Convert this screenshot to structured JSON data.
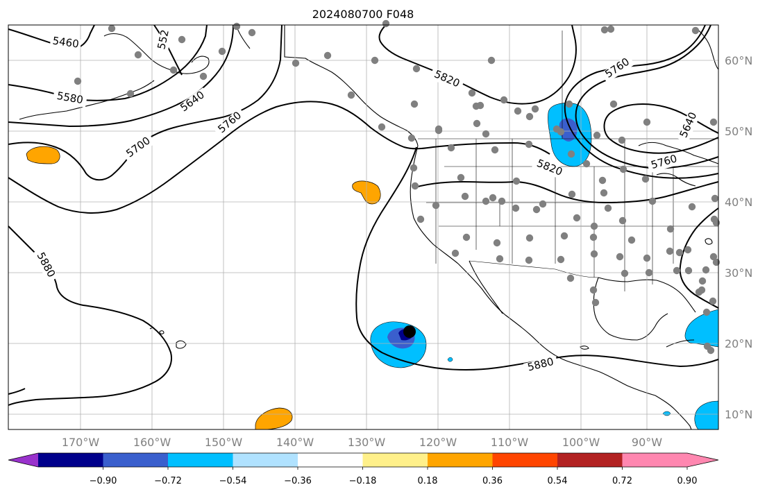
{
  "title": "2024080700 F048",
  "lon_ticks": [
    "170°W",
    "160°W",
    "150°W",
    "140°W",
    "130°W",
    "120°W",
    "110°W",
    "100°W",
    "90°W"
  ],
  "lat_ticks": [
    "60°N",
    "50°N",
    "40°N",
    "30°N",
    "20°N",
    "10°N"
  ],
  "contour_labels": [
    "5460",
    "552",
    "5580",
    "5640",
    "5700",
    "5760",
    "5820",
    "5760",
    "5640",
    "5760",
    "5820",
    "5880",
    "5880"
  ],
  "colorbar": {
    "ticks": [
      "−0.90",
      "−0.72",
      "−0.54",
      "−0.36",
      "−0.18",
      "0.18",
      "0.36",
      "0.54",
      "0.72",
      "0.90"
    ],
    "colors": [
      "#9932cc",
      "#00008b",
      "#3a5fcd",
      "#00bfff",
      "#b0e2ff",
      "#ffffff",
      "#fff08a",
      "#ffa500",
      "#ff4500",
      "#b22222",
      "#ff87b0"
    ]
  },
  "colors": {
    "station": "#808080",
    "contour": "#000000",
    "grid": "#b0b0b0"
  }
}
